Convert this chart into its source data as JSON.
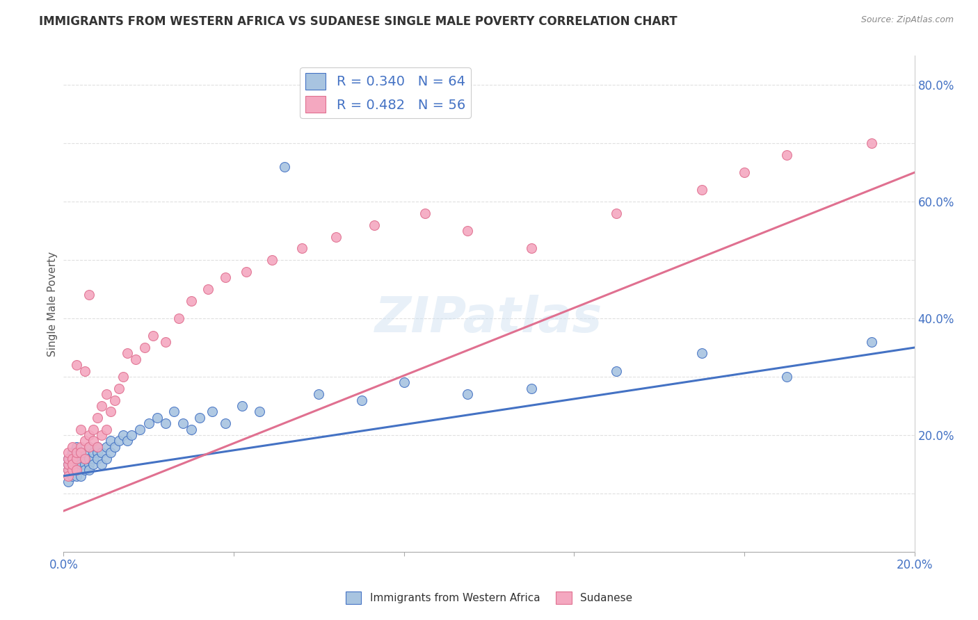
{
  "title": "IMMIGRANTS FROM WESTERN AFRICA VS SUDANESE SINGLE MALE POVERTY CORRELATION CHART",
  "source": "Source: ZipAtlas.com",
  "ylabel": "Single Male Poverty",
  "xlim": [
    0.0,
    0.2
  ],
  "ylim": [
    0.0,
    0.85
  ],
  "x_ticks": [
    0.0,
    0.04,
    0.08,
    0.12,
    0.16,
    0.2
  ],
  "x_tick_labels": [
    "0.0%",
    "",
    "",
    "",
    "",
    "20.0%"
  ],
  "y_ticks": [
    0.0,
    0.2,
    0.4,
    0.6,
    0.8
  ],
  "y_tick_labels": [
    "",
    "20.0%",
    "40.0%",
    "60.0%",
    "80.0%"
  ],
  "blue_R": 0.34,
  "blue_N": 64,
  "pink_R": 0.482,
  "pink_N": 56,
  "blue_color": "#a8c4e0",
  "pink_color": "#f4a8c0",
  "blue_line_color": "#4472c4",
  "pink_line_color": "#e07090",
  "legend_text_color": "#4472c4",
  "watermark": "ZIPatlas",
  "blue_scatter_x": [
    0.001,
    0.001,
    0.001,
    0.001,
    0.002,
    0.002,
    0.002,
    0.002,
    0.003,
    0.003,
    0.003,
    0.003,
    0.003,
    0.004,
    0.004,
    0.004,
    0.004,
    0.005,
    0.005,
    0.005,
    0.005,
    0.006,
    0.006,
    0.006,
    0.006,
    0.007,
    0.007,
    0.007,
    0.008,
    0.008,
    0.008,
    0.009,
    0.009,
    0.01,
    0.01,
    0.011,
    0.011,
    0.012,
    0.013,
    0.014,
    0.015,
    0.016,
    0.018,
    0.02,
    0.022,
    0.024,
    0.026,
    0.028,
    0.03,
    0.032,
    0.035,
    0.038,
    0.042,
    0.046,
    0.052,
    0.06,
    0.07,
    0.08,
    0.095,
    0.11,
    0.13,
    0.15,
    0.17,
    0.19
  ],
  "blue_scatter_y": [
    0.14,
    0.15,
    0.16,
    0.12,
    0.13,
    0.15,
    0.17,
    0.14,
    0.15,
    0.16,
    0.18,
    0.13,
    0.14,
    0.16,
    0.15,
    0.17,
    0.13,
    0.15,
    0.14,
    0.16,
    0.17,
    0.15,
    0.16,
    0.18,
    0.14,
    0.16,
    0.17,
    0.15,
    0.17,
    0.16,
    0.18,
    0.17,
    0.15,
    0.18,
    0.16,
    0.19,
    0.17,
    0.18,
    0.19,
    0.2,
    0.19,
    0.2,
    0.21,
    0.22,
    0.23,
    0.22,
    0.24,
    0.22,
    0.21,
    0.23,
    0.24,
    0.22,
    0.25,
    0.24,
    0.66,
    0.27,
    0.26,
    0.29,
    0.27,
    0.28,
    0.31,
    0.34,
    0.3,
    0.36
  ],
  "pink_scatter_x": [
    0.001,
    0.001,
    0.001,
    0.001,
    0.001,
    0.002,
    0.002,
    0.002,
    0.002,
    0.003,
    0.003,
    0.003,
    0.003,
    0.004,
    0.004,
    0.004,
    0.005,
    0.005,
    0.005,
    0.006,
    0.006,
    0.006,
    0.007,
    0.007,
    0.008,
    0.008,
    0.009,
    0.009,
    0.01,
    0.01,
    0.011,
    0.012,
    0.013,
    0.014,
    0.015,
    0.017,
    0.019,
    0.021,
    0.024,
    0.027,
    0.03,
    0.034,
    0.038,
    0.043,
    0.049,
    0.056,
    0.064,
    0.073,
    0.085,
    0.095,
    0.11,
    0.13,
    0.15,
    0.16,
    0.17,
    0.19
  ],
  "pink_scatter_y": [
    0.14,
    0.15,
    0.16,
    0.13,
    0.17,
    0.16,
    0.18,
    0.14,
    0.15,
    0.16,
    0.17,
    0.14,
    0.32,
    0.18,
    0.17,
    0.21,
    0.19,
    0.16,
    0.31,
    0.2,
    0.18,
    0.44,
    0.21,
    0.19,
    0.23,
    0.18,
    0.25,
    0.2,
    0.27,
    0.21,
    0.24,
    0.26,
    0.28,
    0.3,
    0.34,
    0.33,
    0.35,
    0.37,
    0.36,
    0.4,
    0.43,
    0.45,
    0.47,
    0.48,
    0.5,
    0.52,
    0.54,
    0.56,
    0.58,
    0.55,
    0.52,
    0.58,
    0.62,
    0.65,
    0.68,
    0.7
  ],
  "background_color": "#ffffff",
  "grid_color": "#e0e0e0"
}
